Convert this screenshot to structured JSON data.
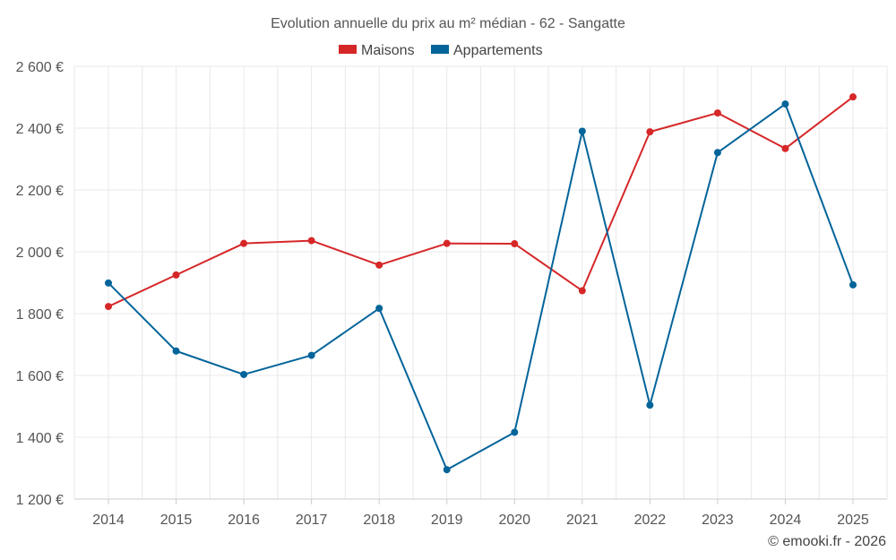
{
  "chart_data": {
    "type": "line",
    "title": "Evolution annuelle du prix au m² médian - 62 - Sangatte",
    "categories": [
      "2014",
      "2015",
      "2016",
      "2017",
      "2018",
      "2019",
      "2020",
      "2021",
      "2022",
      "2023",
      "2024",
      "2025"
    ],
    "series": [
      {
        "name": "Maisons",
        "color": "#d62728",
        "values": [
          1823,
          1925,
          2027,
          2036,
          1957,
          2027,
          2026,
          1874,
          2388,
          2449,
          2334,
          2501
        ]
      },
      {
        "name": "Appartements",
        "color": "#03649a",
        "values": [
          1899,
          1679,
          1603,
          1665,
          1817,
          1295,
          1416,
          2390,
          1504,
          2321,
          2478,
          1893
        ]
      }
    ],
    "ylim": [
      1200,
      2600
    ],
    "yticks": [
      1200,
      1400,
      1600,
      1800,
      2000,
      2200,
      2400,
      2600
    ],
    "ytick_labels": [
      "1 200 €",
      "1 400 €",
      "1 600 €",
      "1 800 €",
      "2 000 €",
      "2 200 €",
      "2 400 €",
      "2 600 €"
    ],
    "xlabel": "",
    "ylabel": "",
    "grid": true,
    "legend_position": "top-center"
  },
  "credit": "© emooki.fr - 2026"
}
